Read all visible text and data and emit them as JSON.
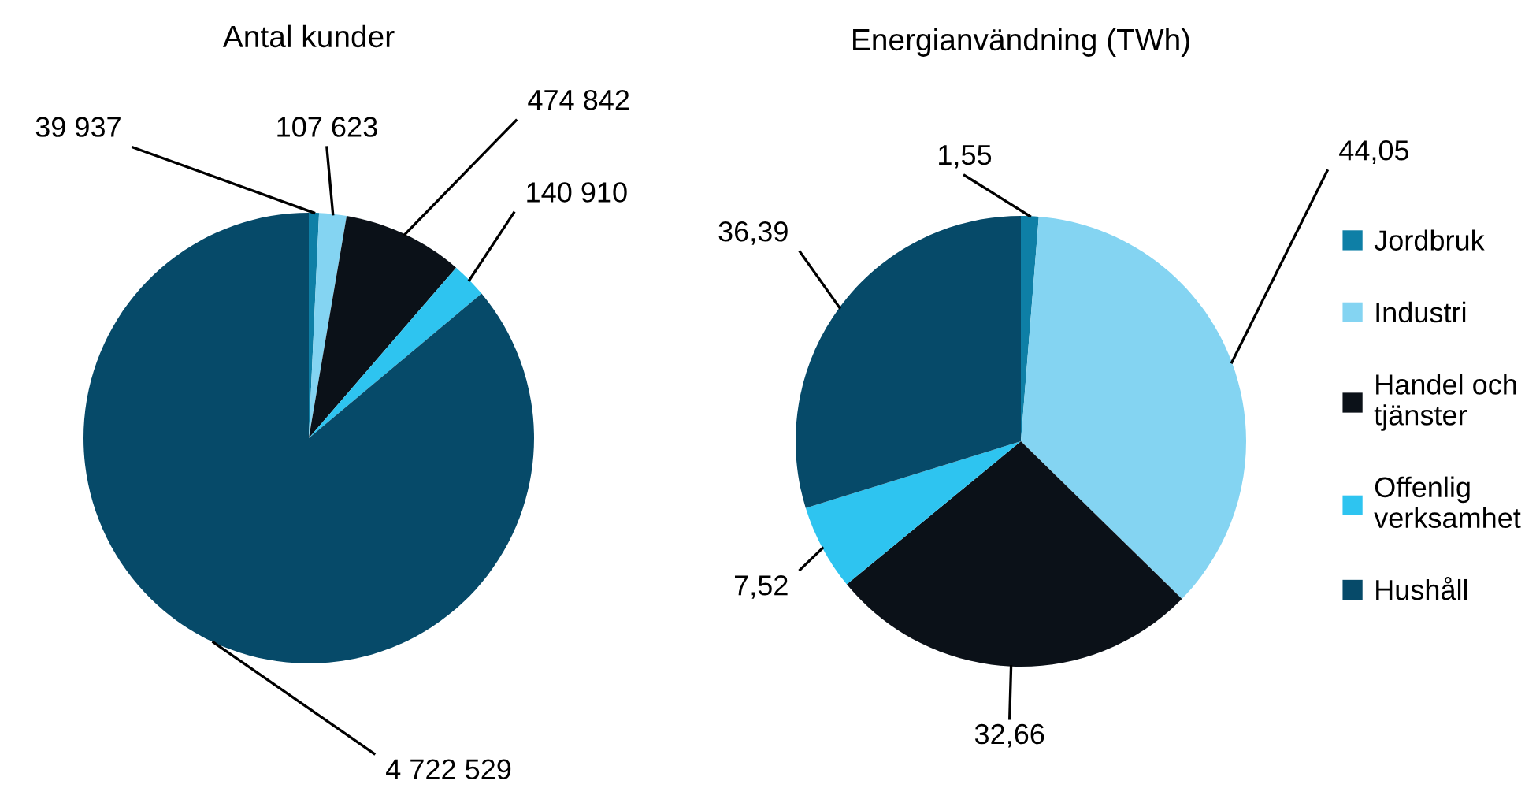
{
  "chart_data": [
    {
      "type": "pie",
      "title": "Antal kunder",
      "categories": [
        null,
        null,
        null,
        null,
        null
      ],
      "values": [
        39937,
        107623,
        474842,
        140910,
        4722529
      ],
      "value_labels": [
        "39 937",
        "107 623",
        "474 842",
        "140 910",
        "4 722 529"
      ],
      "colors": [
        "#0e7fa6",
        "#84d4f2",
        "#0b1118",
        "#2ec4f0",
        "#064a69"
      ],
      "legend": false
    },
    {
      "type": "pie",
      "title": "Energianvändning (TWh)",
      "categories": [
        "Jordbruk",
        "Industri",
        "Handel och tjänster",
        "Offenlig verksamhet",
        "Hushåll"
      ],
      "values": [
        1.55,
        44.05,
        32.66,
        7.52,
        36.39
      ],
      "value_labels": [
        "1,55",
        "44,05",
        "32,66",
        "7,52",
        "36,39"
      ],
      "colors": [
        "#0e7fa6",
        "#84d4f2",
        "#0b1118",
        "#2ec4f0",
        "#064a69"
      ],
      "legend": "right"
    }
  ]
}
